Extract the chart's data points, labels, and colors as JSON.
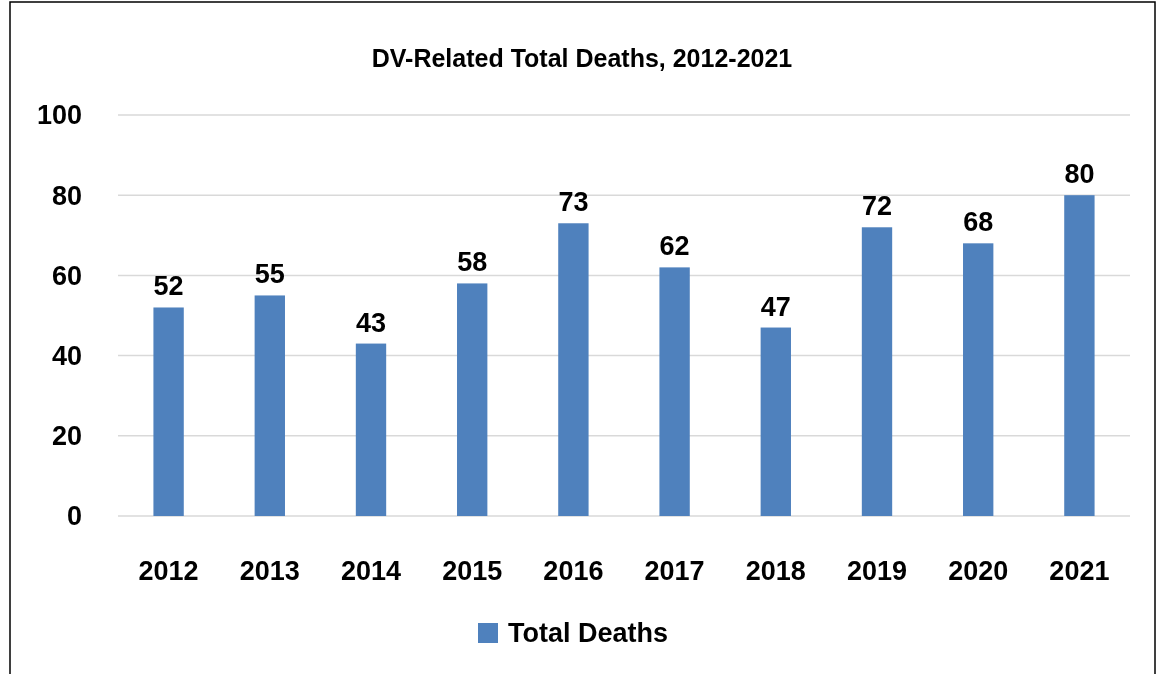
{
  "chart_data": {
    "type": "bar",
    "title": "DV-Related Total Deaths, 2012-2021",
    "categories": [
      "2012",
      "2013",
      "2014",
      "2015",
      "2016",
      "2017",
      "2018",
      "2019",
      "2020",
      "2021"
    ],
    "series": [
      {
        "name": "Total Deaths",
        "color": "#4f81bd",
        "values": [
          52,
          55,
          43,
          58,
          73,
          62,
          47,
          72,
          68,
          80
        ]
      }
    ],
    "ylim": [
      0,
      100
    ],
    "yticks": [
      0,
      20,
      40,
      60,
      80,
      100
    ],
    "grid": "y",
    "legend": "bottom",
    "data_labels": true
  }
}
